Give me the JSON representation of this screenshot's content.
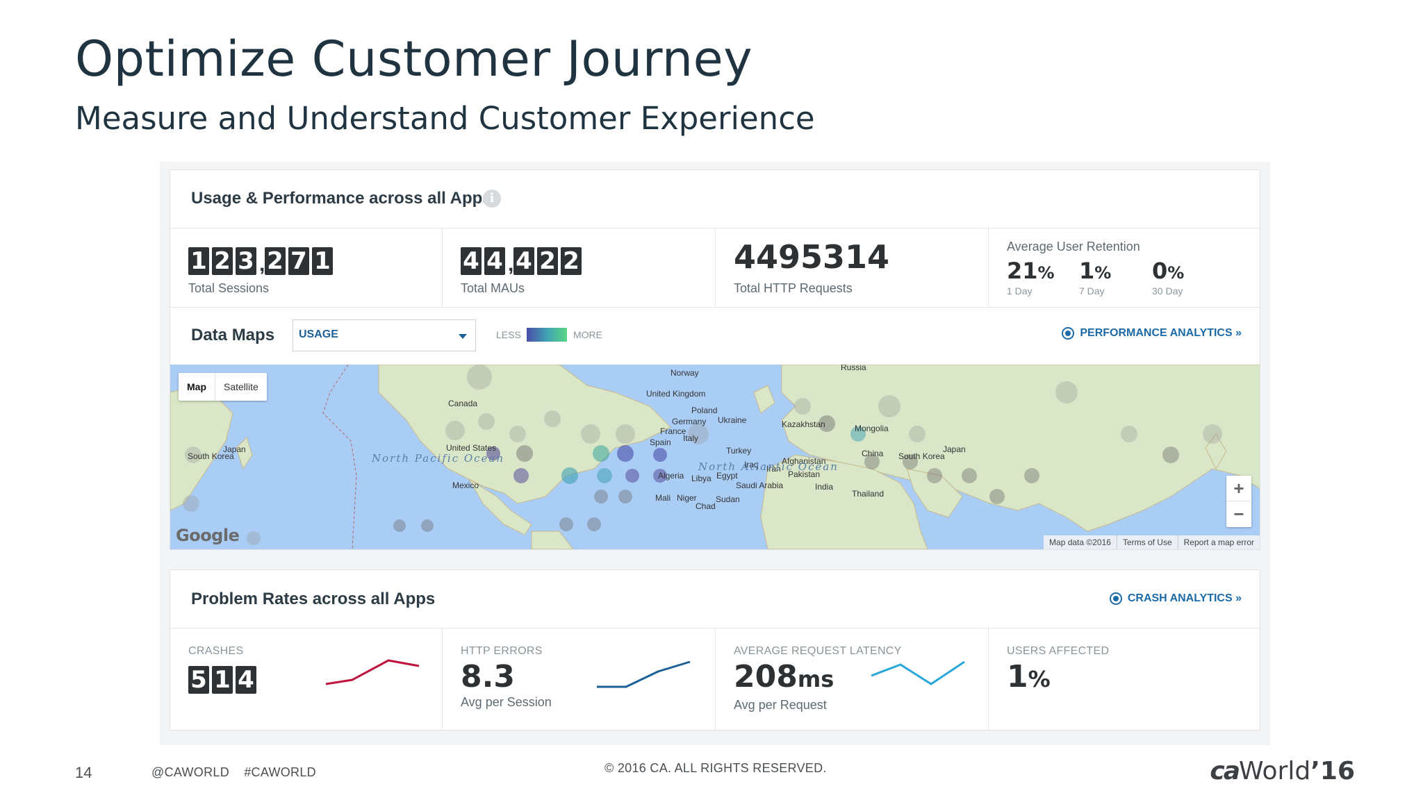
{
  "slide": {
    "title": "Optimize Customer Journey",
    "subtitle": "Measure and Understand Customer Experience"
  },
  "usage": {
    "title": "Usage & Performance across all Apps",
    "info_glyph": "i",
    "sessions": {
      "digits": [
        "1",
        "2",
        "3",
        ",",
        "2",
        "7",
        "1"
      ],
      "label": "Total Sessions"
    },
    "maus": {
      "digits": [
        "4",
        "4",
        ",",
        "4",
        "2",
        "2"
      ],
      "label": "Total MAUs"
    },
    "http": {
      "value": "4495314",
      "label": "Total HTTP Requests"
    },
    "retention": {
      "title": "Average User Retention",
      "items": [
        {
          "value": "21",
          "unit": "%",
          "label": "1 Day"
        },
        {
          "value": "1",
          "unit": "%",
          "label": "7 Day"
        },
        {
          "value": "0",
          "unit": "%",
          "label": "30 Day"
        }
      ]
    }
  },
  "maps": {
    "title": "Data Maps",
    "select_value": "USAGE",
    "legend_less": "LESS",
    "legend_more": "MORE",
    "perf_link": "PERFORMANCE ANALYTICS »",
    "toggle_map": "Map",
    "toggle_satellite": "Satellite",
    "zoom_in": "+",
    "zoom_out": "−",
    "google": "Google",
    "footer_data": "Map data ©2016",
    "footer_terms": "Terms of Use",
    "footer_report": "Report a map error",
    "labels": {
      "norway": "Norway",
      "russia": "Russia",
      "canada": "Canada",
      "uk": "United Kingdom",
      "poland": "Poland",
      "germany": "Germany",
      "ukraine": "Ukraine",
      "france": "France",
      "kazakhstan": "Kazakhstan",
      "mongolia": "Mongolia",
      "spain": "Spain",
      "italy": "Italy",
      "turkey": "Turkey",
      "japan_w": "Japan",
      "skorea_w": "South Korea",
      "us": "United States",
      "npacific": "North Pacific Ocean",
      "natlantic": "North Atlantic Ocean",
      "afghanistan": "Afghanistan",
      "iraq": "Iraq",
      "iran": "Iran",
      "china": "China",
      "skorea_e": "South Korea",
      "japan_e": "Japan",
      "pakistan": "Pakistan",
      "algeria": "Algeria",
      "libya": "Libya",
      "egypt": "Egypt",
      "mexico": "Mexico",
      "saudi": "Saudi Arabia",
      "india": "India",
      "thailand": "Thailand",
      "mali": "Mali",
      "niger": "Niger",
      "sudan": "Sudan",
      "chad": "Chad"
    }
  },
  "problems": {
    "title": "Problem Rates across all Apps",
    "crash_link": "CRASH ANALYTICS »",
    "crashes": {
      "label": "CRASHES",
      "digits": [
        "5",
        "1",
        "4"
      ]
    },
    "http_errors": {
      "label": "HTTP ERRORS",
      "value": "8.3",
      "sub": "Avg per Session"
    },
    "latency": {
      "label": "AVERAGE REQUEST LATENCY",
      "value": "208",
      "unit": "ms",
      "sub": "Avg per Request"
    },
    "users": {
      "label": "USERS AFFECTED",
      "value": "1",
      "unit": "%"
    },
    "colors": {
      "crashes": "#c0123c",
      "http": "#1b5f97",
      "latency": "#27a6d9"
    }
  },
  "footer": {
    "page": "14",
    "social": "@CAWORLD    #CAWORLD",
    "copyright": "© 2016 CA. ALL RIGHTS RESERVED.",
    "logo_ca": "ca",
    "logo_world": "World",
    "logo_year": "’16"
  }
}
